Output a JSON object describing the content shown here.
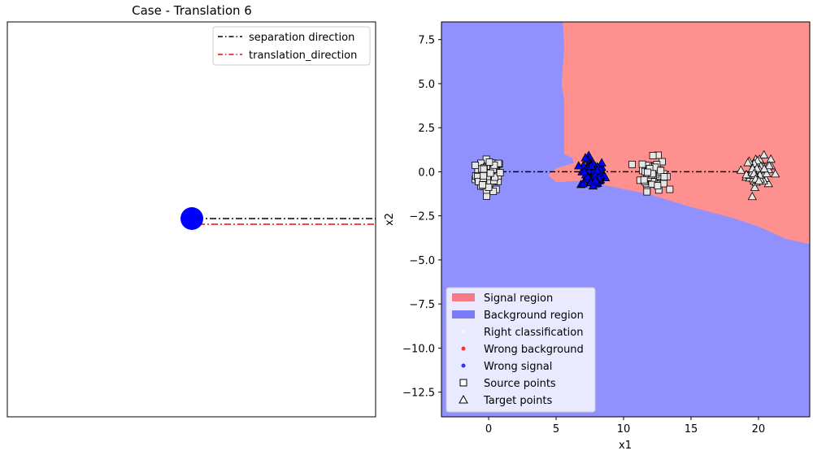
{
  "chart_data": [
    {
      "type": "line",
      "title": "Case - Translation 6",
      "xlabel": "",
      "ylabel": "",
      "axes_visible": false,
      "legend_position": "top-right",
      "series": [
        {
          "name": "separation direction",
          "color": "#000000",
          "style": "dash-dot",
          "x": [
            0.0,
            1.0
          ],
          "y": [
            0.0,
            0.0
          ]
        },
        {
          "name": "translation_direction",
          "color": "#ff0000",
          "style": "dash-dot",
          "x": [
            0.0,
            1.0
          ],
          "y": [
            -0.03,
            -0.03
          ]
        }
      ],
      "marker": {
        "color": "#0000ff",
        "x": 0.0,
        "y": 0.0
      }
    },
    {
      "type": "scatter",
      "title": "",
      "xlabel": "x1",
      "ylabel": "x2",
      "xlim": [
        -3.5,
        23.8
      ],
      "ylim": [
        -13.9,
        8.5
      ],
      "xticks": [
        0,
        5,
        10,
        15,
        20
      ],
      "yticks": [
        7.5,
        5.0,
        2.5,
        0.0,
        -2.5,
        -5.0,
        -7.5,
        -10.0,
        -12.5
      ],
      "ytick_labels": [
        "7.5",
        "5.0",
        "2.5",
        "0.0",
        "−2.5",
        "−5.0",
        "−7.5",
        "−10.0",
        "−12.5"
      ],
      "legend_position": "lower-left",
      "regions": {
        "signal_color": "#ff9090",
        "background_color": "#9090ff",
        "signal_boundary": [
          [
            5.5,
            8.5
          ],
          [
            5.6,
            7.0
          ],
          [
            5.4,
            5.0
          ],
          [
            5.6,
            4.0
          ],
          [
            5.6,
            1.0
          ],
          [
            6.2,
            0.8
          ],
          [
            6.3,
            0.5
          ],
          [
            5.0,
            0.2
          ],
          [
            4.4,
            -0.2
          ],
          [
            5.0,
            -0.6
          ],
          [
            6.8,
            -0.5
          ],
          [
            9.5,
            -0.9
          ],
          [
            12.0,
            -1.3
          ],
          [
            15.0,
            -2.0
          ],
          [
            18.0,
            -2.6
          ],
          [
            20.0,
            -3.1
          ],
          [
            22.0,
            -3.8
          ],
          [
            23.8,
            -4.1
          ],
          [
            23.8,
            8.5
          ]
        ]
      },
      "separation_line": {
        "x": [
          0.0,
          20.0
        ],
        "y": [
          0.0,
          0.0
        ],
        "color": "#000000",
        "style": "dash-dot"
      },
      "series": [
        {
          "name": "Source points",
          "marker": "square",
          "color": "#e6e6e6",
          "center": [
            0.0,
            -0.2
          ],
          "spread": [
            0.8,
            0.6
          ],
          "count": 70
        },
        {
          "name": "Target points",
          "marker": "triangle",
          "color": "#e6e6e6",
          "center": [
            7.7,
            -0.1
          ],
          "spread": [
            0.75,
            0.55
          ],
          "count": 70
        },
        {
          "name": "Source points",
          "marker": "square",
          "color": "#e6e6e6",
          "center": [
            12.2,
            -0.1
          ],
          "spread": [
            0.75,
            0.6
          ],
          "count": 70
        },
        {
          "name": "Target points",
          "marker": "triangle",
          "color": "#e6e6e6",
          "center": [
            20.0,
            0.0
          ],
          "spread": [
            0.75,
            0.55
          ],
          "count": 70
        }
      ],
      "wrong_signal": {
        "color": "#0000ff",
        "center": [
          7.7,
          -0.1
        ]
      },
      "legend": [
        {
          "label": "Signal region",
          "kind": "patch",
          "color": "#f77b84"
        },
        {
          "label": "Background region",
          "kind": "patch",
          "color": "#7b7bf7"
        },
        {
          "label": "Right classification",
          "kind": "dot",
          "color": "#f5f5f5"
        },
        {
          "label": "Wrong background",
          "kind": "dot",
          "color": "#ff3030"
        },
        {
          "label": "Wrong signal",
          "kind": "dot",
          "color": "#3030ff"
        },
        {
          "label": "Source points",
          "kind": "square",
          "color": "#ffffff"
        },
        {
          "label": "Target points",
          "kind": "triangle",
          "color": "#ffffff"
        }
      ]
    }
  ]
}
